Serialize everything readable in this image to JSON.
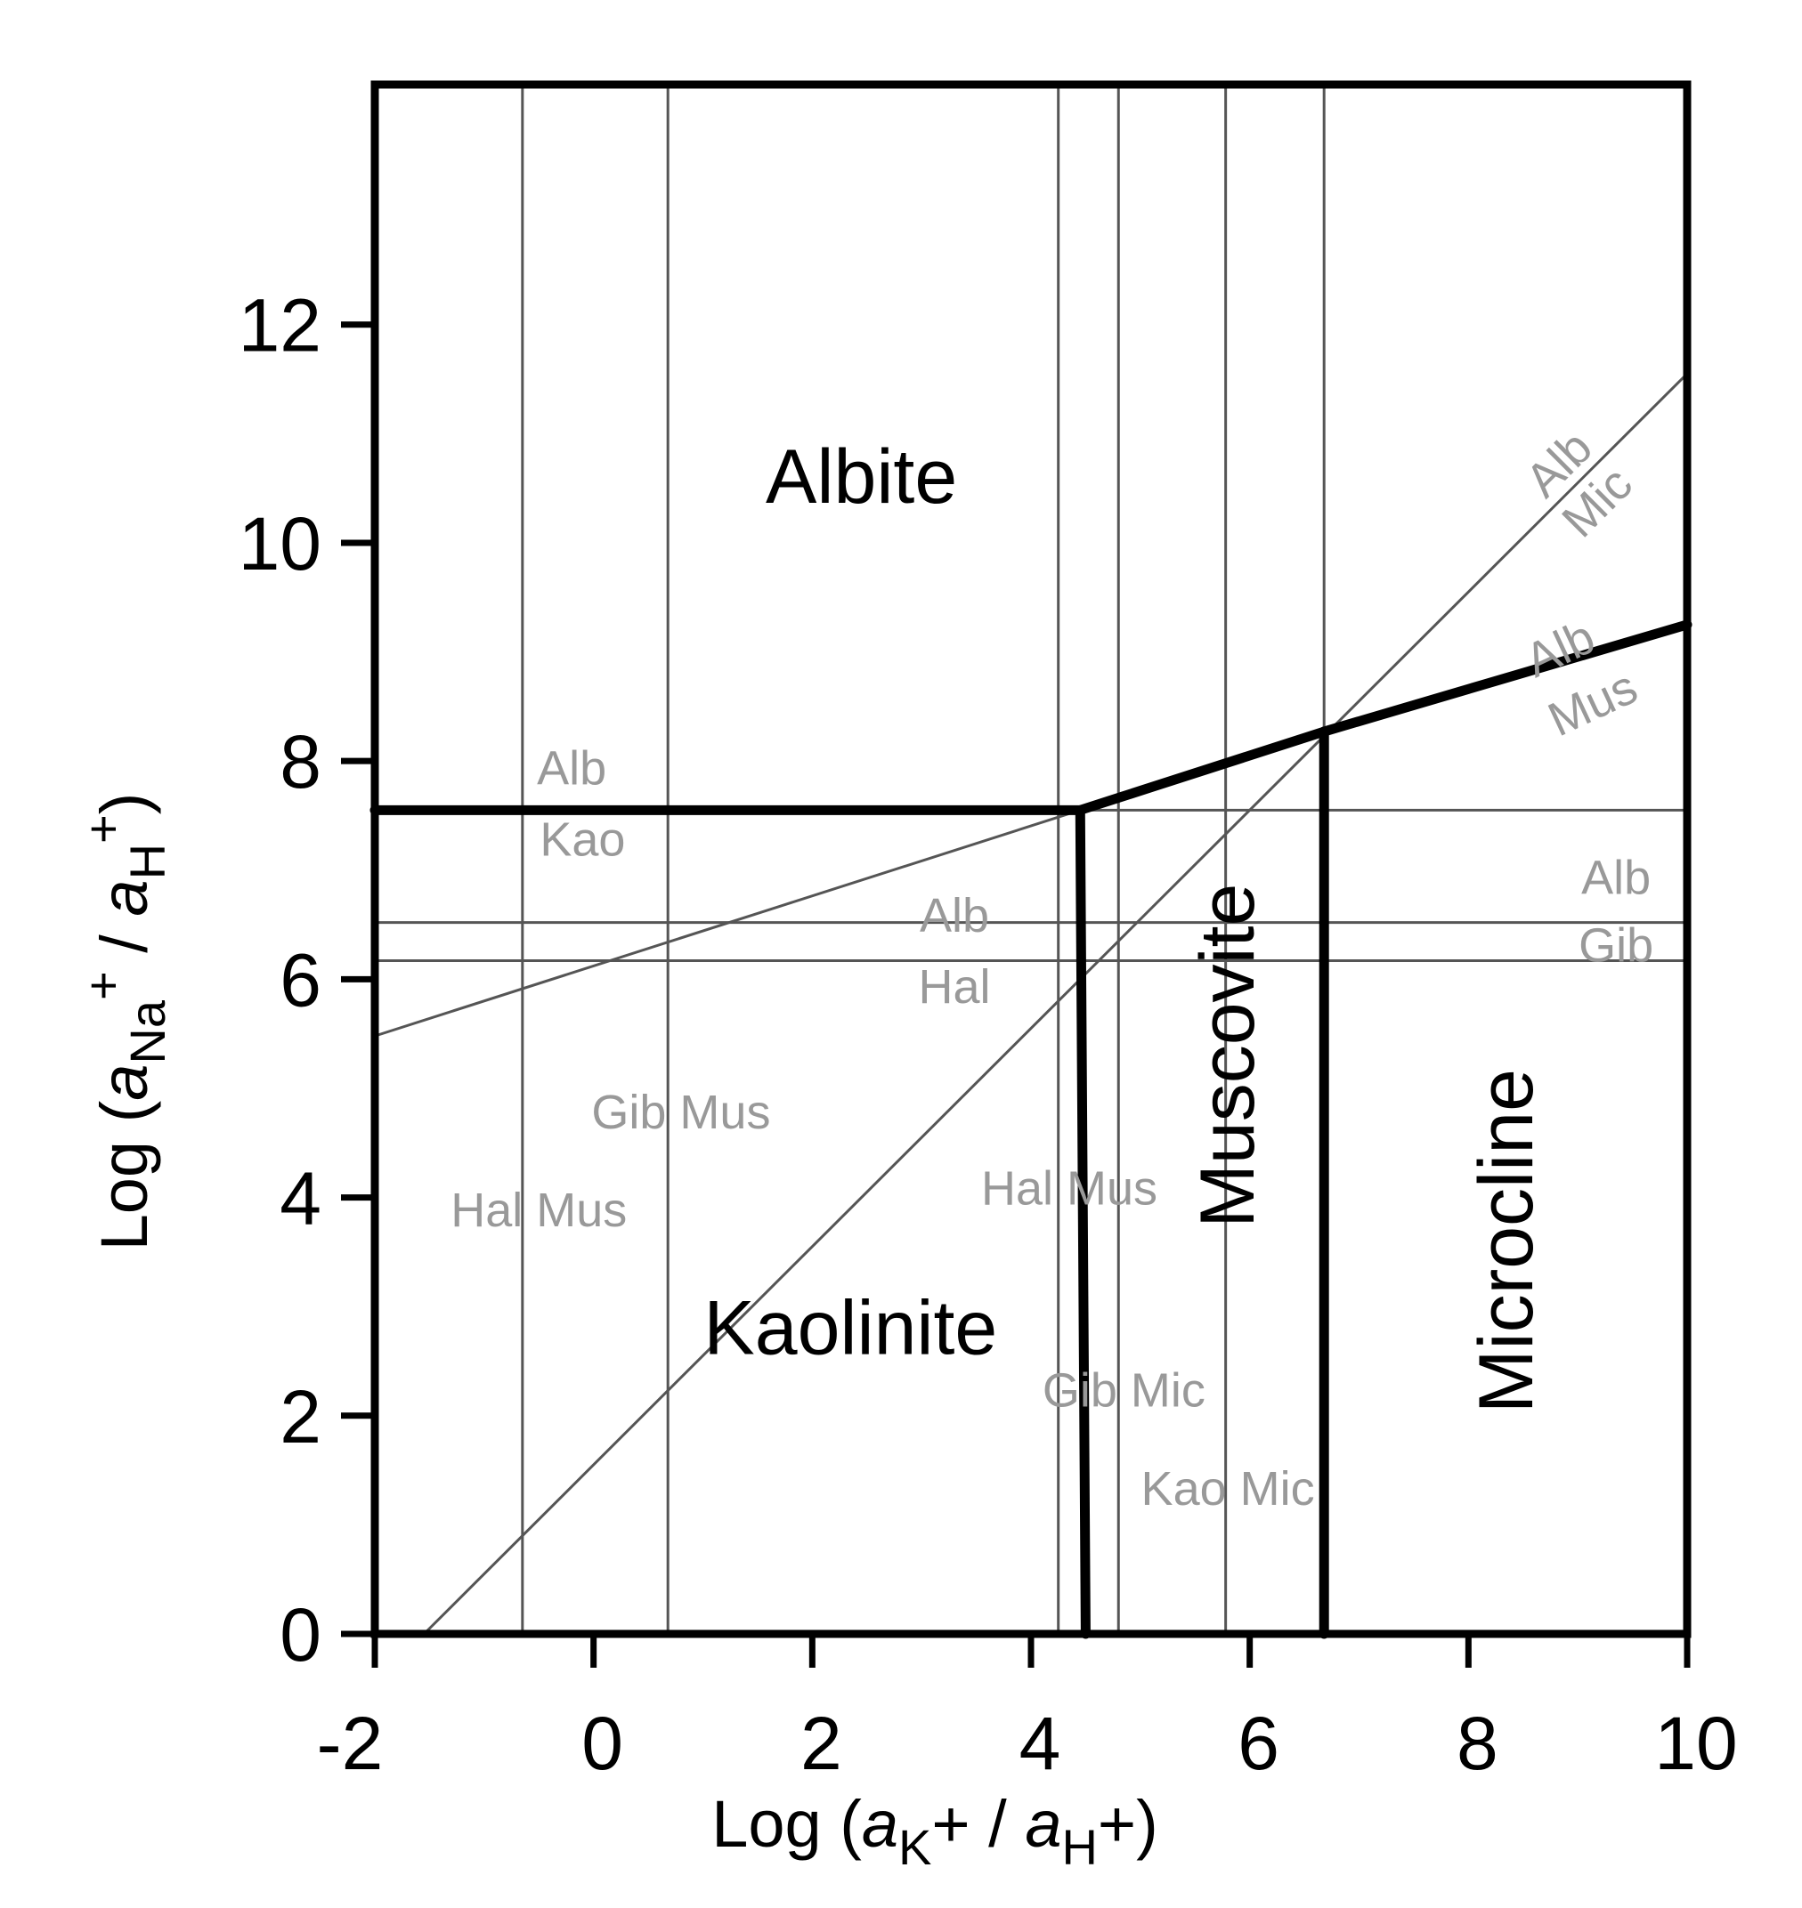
{
  "chart_data": {
    "type": "line",
    "title": "",
    "xlabel": {
      "parts": [
        {
          "text": "Log (",
          "style": "normal"
        },
        {
          "text": "a",
          "style": "italic"
        },
        {
          "text": "K",
          "style": "sub"
        },
        {
          "text": "+ / ",
          "style": "normal"
        },
        {
          "text": "a",
          "style": "italic"
        },
        {
          "text": "H",
          "style": "sub"
        },
        {
          "text": "+)",
          "style": "normal"
        }
      ]
    },
    "ylabel": {
      "parts": [
        {
          "text": "Log (",
          "style": "normal"
        },
        {
          "text": "a",
          "style": "italic"
        },
        {
          "text": "Na",
          "style": "sub"
        },
        {
          "text": "+",
          "style": "sup"
        },
        {
          "text": " / ",
          "style": "normal"
        },
        {
          "text": "a",
          "style": "italic"
        },
        {
          "text": "H",
          "style": "sub"
        },
        {
          "text": "+",
          "style": "sup"
        },
        {
          "text": ")",
          "style": "normal"
        }
      ]
    },
    "xlim": [
      -2,
      10
    ],
    "ylim": [
      0,
      14.2
    ],
    "x_ticks": [
      -2,
      0,
      2,
      4,
      6,
      8,
      10
    ],
    "x_tick_labels": [
      "-2",
      "0",
      "2",
      "4",
      "6",
      "8",
      "10"
    ],
    "y_ticks": [
      0,
      2,
      4,
      6,
      8,
      10,
      12
    ],
    "y_tick_labels": [
      "0",
      "2",
      "4",
      "6",
      "8",
      "10",
      "12"
    ],
    "grid": false,
    "colors": {
      "frame": "#000000",
      "stable_boundary": "#000000",
      "metastable_line": "#555555",
      "reaction_text": "#999999"
    },
    "stable_boundaries": [
      {
        "name": "Albite-Kaolinite",
        "x": [
          -2,
          4.45
        ],
        "y": [
          7.55,
          7.55
        ]
      },
      {
        "name": "Albite-Muscovite",
        "x": [
          4.45,
          6.68
        ],
        "y": [
          7.55,
          8.27
        ]
      },
      {
        "name": "Albite-Microcline",
        "x": [
          6.68,
          10
        ],
        "y": [
          8.27,
          9.25
        ]
      },
      {
        "name": "Kaolinite-Muscovite",
        "x": [
          4.45,
          4.5
        ],
        "y": [
          7.55,
          0
        ]
      },
      {
        "name": "Muscovite-Microcline",
        "x": [
          6.68,
          6.68
        ],
        "y": [
          8.27,
          0
        ]
      }
    ],
    "metastable_lines": [
      {
        "name": "Hal Mus",
        "x": [
          -0.65,
          -0.65
        ],
        "y": [
          0,
          14.2
        ]
      },
      {
        "name": "Gib Mus",
        "x": [
          0.68,
          0.68
        ],
        "y": [
          0,
          14.2
        ]
      },
      {
        "name": "Hal Mus 2",
        "x": [
          4.25,
          4.25
        ],
        "y": [
          0,
          14.2
        ]
      },
      {
        "name": "Gib Mic",
        "x": [
          4.8,
          4.8
        ],
        "y": [
          0,
          14.2
        ]
      },
      {
        "name": "Kao Mic",
        "x": [
          5.78,
          5.78
        ],
        "y": [
          0,
          14.2
        ]
      },
      {
        "name": "Kao Mic 2",
        "x": [
          6.68,
          6.68
        ],
        "y": [
          0,
          14.2
        ]
      },
      {
        "name": "Alb Hal",
        "x": [
          -2,
          10
        ],
        "y": [
          6.52,
          6.52
        ]
      },
      {
        "name": "Alb Gib",
        "x": [
          -2,
          10
        ],
        "y": [
          6.17,
          6.17
        ]
      },
      {
        "name": "Alb Kao",
        "x": [
          4.45,
          10
        ],
        "y": [
          7.55,
          7.55
        ]
      },
      {
        "name": "Alb Mus metastable",
        "x": [
          -2,
          4.45
        ],
        "y": [
          5.48,
          7.55
        ]
      },
      {
        "name": "Alb Mic",
        "x": [
          -1.55,
          10
        ],
        "y": [
          0,
          11.55
        ]
      }
    ],
    "field_labels": [
      {
        "text": "Albite",
        "x": 2.45,
        "y": 10.55,
        "rotate": 0
      },
      {
        "text": "Kaolinite",
        "x": 2.35,
        "y": 2.75,
        "rotate": 0
      },
      {
        "text": "Muscovite",
        "x": 5.85,
        "y": 5.3,
        "rotate": -90
      },
      {
        "text": "Microcline",
        "x": 8.4,
        "y": 3.6,
        "rotate": -90
      }
    ],
    "reaction_labels": [
      {
        "text": "Alb",
        "x": -0.2,
        "y": 7.9,
        "rotate": 0
      },
      {
        "text": "Kao",
        "x": -0.1,
        "y": 7.25,
        "rotate": 0
      },
      {
        "text": "Alb",
        "x": 3.3,
        "y": 6.55,
        "rotate": 0
      },
      {
        "text": "Hal",
        "x": 3.3,
        "y": 5.9,
        "rotate": 0
      },
      {
        "text": "Alb",
        "x": 9.35,
        "y": 6.9,
        "rotate": 0
      },
      {
        "text": "Gib",
        "x": 9.35,
        "y": 6.28,
        "rotate": 0
      },
      {
        "text": "Gib Mus",
        "x": 0.8,
        "y": 4.75,
        "rotate": 0
      },
      {
        "text": "Hal Mus",
        "x": -0.5,
        "y": 3.85,
        "rotate": 0
      },
      {
        "text": "Hal Mus",
        "x": 4.35,
        "y": 4.05,
        "rotate": 0
      },
      {
        "text": "Gib Mic",
        "x": 4.85,
        "y": 2.2,
        "rotate": 0
      },
      {
        "text": "Kao Mic",
        "x": 5.8,
        "y": 1.3,
        "rotate": 0
      },
      {
        "text": "Alb",
        "x": 8.85,
        "y": 10.7,
        "rotate": -45
      },
      {
        "text": "Mic",
        "x": 9.2,
        "y": 10.35,
        "rotate": -45
      },
      {
        "text": "Alb",
        "x": 8.85,
        "y": 9.0,
        "rotate": -25
      },
      {
        "text": "Mus",
        "x": 9.15,
        "y": 8.5,
        "rotate": -25
      }
    ]
  }
}
